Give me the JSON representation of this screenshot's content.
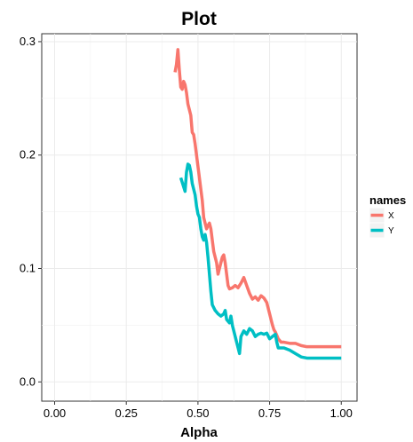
{
  "chart_data": {
    "type": "line",
    "title": "Plot",
    "xlabel": "Alpha",
    "ylabel": "",
    "xlim": [
      -0.045,
      1.055
    ],
    "ylim": [
      -0.017,
      0.307
    ],
    "x_ticks": [
      0.0,
      0.25,
      0.5,
      0.75,
      1.0
    ],
    "x_tick_labels": [
      "0.00",
      "0.25",
      "0.50",
      "0.75",
      "1.00"
    ],
    "y_ticks": [
      0.0,
      0.1,
      0.2,
      0.3
    ],
    "y_tick_labels": [
      "0.0",
      "0.1",
      "0.2",
      "0.3"
    ],
    "grid": true,
    "legend": {
      "title": "names",
      "position": "right"
    },
    "series": [
      {
        "name": "X",
        "color": "#F8766D",
        "points": [
          [
            0.42,
            0.273
          ],
          [
            0.425,
            0.28
          ],
          [
            0.43,
            0.293
          ],
          [
            0.435,
            0.275
          ],
          [
            0.44,
            0.26
          ],
          [
            0.445,
            0.258
          ],
          [
            0.45,
            0.265
          ],
          [
            0.455,
            0.262
          ],
          [
            0.46,
            0.255
          ],
          [
            0.465,
            0.245
          ],
          [
            0.47,
            0.24
          ],
          [
            0.475,
            0.235
          ],
          [
            0.48,
            0.22
          ],
          [
            0.485,
            0.218
          ],
          [
            0.49,
            0.21
          ],
          [
            0.495,
            0.2
          ],
          [
            0.5,
            0.19
          ],
          [
            0.505,
            0.18
          ],
          [
            0.51,
            0.17
          ],
          [
            0.515,
            0.16
          ],
          [
            0.52,
            0.145
          ],
          [
            0.525,
            0.14
          ],
          [
            0.53,
            0.135
          ],
          [
            0.535,
            0.138
          ],
          [
            0.54,
            0.14
          ],
          [
            0.545,
            0.135
          ],
          [
            0.55,
            0.125
          ],
          [
            0.555,
            0.115
          ],
          [
            0.56,
            0.11
          ],
          [
            0.565,
            0.105
          ],
          [
            0.57,
            0.095
          ],
          [
            0.575,
            0.1
          ],
          [
            0.58,
            0.105
          ],
          [
            0.585,
            0.11
          ],
          [
            0.59,
            0.112
          ],
          [
            0.595,
            0.105
          ],
          [
            0.6,
            0.095
          ],
          [
            0.605,
            0.085
          ],
          [
            0.61,
            0.082
          ],
          [
            0.62,
            0.083
          ],
          [
            0.63,
            0.085
          ],
          [
            0.64,
            0.083
          ],
          [
            0.65,
            0.087
          ],
          [
            0.66,
            0.092
          ],
          [
            0.67,
            0.085
          ],
          [
            0.68,
            0.078
          ],
          [
            0.69,
            0.073
          ],
          [
            0.7,
            0.075
          ],
          [
            0.71,
            0.072
          ],
          [
            0.72,
            0.076
          ],
          [
            0.73,
            0.074
          ],
          [
            0.74,
            0.07
          ],
          [
            0.75,
            0.06
          ],
          [
            0.755,
            0.055
          ],
          [
            0.76,
            0.05
          ],
          [
            0.765,
            0.046
          ],
          [
            0.77,
            0.044
          ],
          [
            0.78,
            0.038
          ],
          [
            0.79,
            0.035
          ],
          [
            0.8,
            0.035
          ],
          [
            0.82,
            0.034
          ],
          [
            0.84,
            0.034
          ],
          [
            0.85,
            0.033
          ],
          [
            0.86,
            0.032
          ],
          [
            0.88,
            0.031
          ],
          [
            0.9,
            0.031
          ],
          [
            0.92,
            0.031
          ],
          [
            0.94,
            0.031
          ],
          [
            0.96,
            0.031
          ],
          [
            1.0,
            0.031
          ]
        ]
      },
      {
        "name": "Y",
        "color": "#00BFC4",
        "points": [
          [
            0.44,
            0.18
          ],
          [
            0.445,
            0.176
          ],
          [
            0.45,
            0.172
          ],
          [
            0.455,
            0.168
          ],
          [
            0.46,
            0.185
          ],
          [
            0.465,
            0.192
          ],
          [
            0.47,
            0.191
          ],
          [
            0.475,
            0.185
          ],
          [
            0.48,
            0.175
          ],
          [
            0.485,
            0.17
          ],
          [
            0.49,
            0.165
          ],
          [
            0.495,
            0.155
          ],
          [
            0.5,
            0.148
          ],
          [
            0.505,
            0.145
          ],
          [
            0.51,
            0.135
          ],
          [
            0.515,
            0.128
          ],
          [
            0.52,
            0.125
          ],
          [
            0.525,
            0.13
          ],
          [
            0.53,
            0.123
          ],
          [
            0.535,
            0.11
          ],
          [
            0.54,
            0.095
          ],
          [
            0.545,
            0.08
          ],
          [
            0.55,
            0.068
          ],
          [
            0.56,
            0.063
          ],
          [
            0.57,
            0.06
          ],
          [
            0.58,
            0.058
          ],
          [
            0.59,
            0.06
          ],
          [
            0.595,
            0.063
          ],
          [
            0.6,
            0.055
          ],
          [
            0.61,
            0.052
          ],
          [
            0.615,
            0.058
          ],
          [
            0.62,
            0.05
          ],
          [
            0.63,
            0.04
          ],
          [
            0.635,
            0.035
          ],
          [
            0.64,
            0.03
          ],
          [
            0.645,
            0.025
          ],
          [
            0.65,
            0.04
          ],
          [
            0.66,
            0.045
          ],
          [
            0.67,
            0.042
          ],
          [
            0.68,
            0.047
          ],
          [
            0.69,
            0.045
          ],
          [
            0.7,
            0.04
          ],
          [
            0.71,
            0.042
          ],
          [
            0.72,
            0.043
          ],
          [
            0.73,
            0.042
          ],
          [
            0.74,
            0.043
          ],
          [
            0.75,
            0.038
          ],
          [
            0.76,
            0.04
          ],
          [
            0.77,
            0.042
          ],
          [
            0.775,
            0.035
          ],
          [
            0.78,
            0.03
          ],
          [
            0.8,
            0.03
          ],
          [
            0.82,
            0.028
          ],
          [
            0.84,
            0.025
          ],
          [
            0.86,
            0.022
          ],
          [
            0.88,
            0.021
          ],
          [
            0.9,
            0.021
          ],
          [
            0.92,
            0.021
          ],
          [
            0.94,
            0.021
          ],
          [
            0.96,
            0.021
          ],
          [
            1.0,
            0.021
          ]
        ]
      }
    ]
  }
}
